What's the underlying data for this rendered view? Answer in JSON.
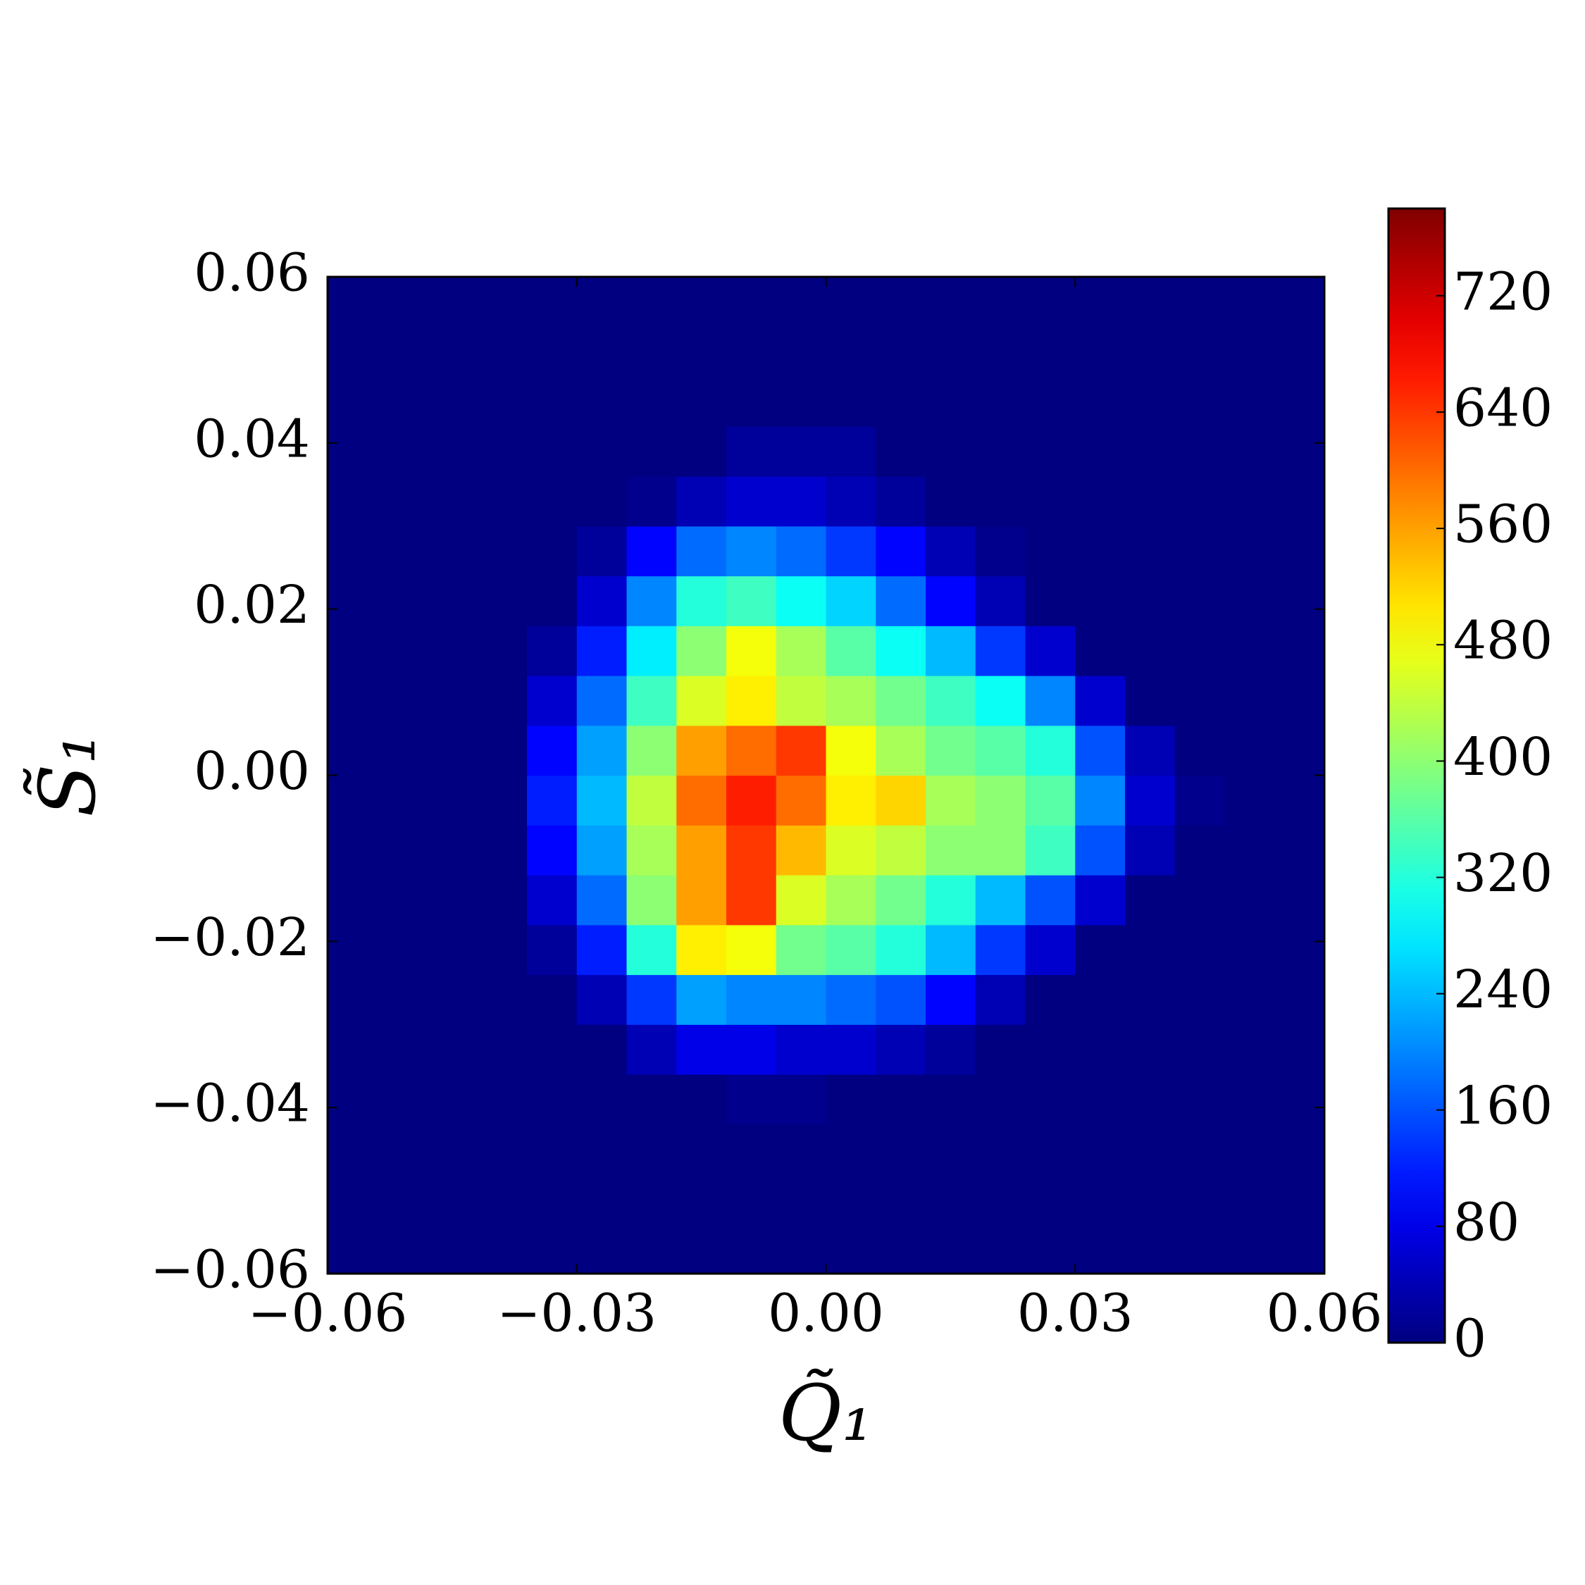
{
  "chart_data": {
    "type": "heatmap",
    "x_label": "Q̃₁",
    "y_label": "S̃₁",
    "colormap": "jet",
    "xbins": [
      -0.06,
      -0.054,
      -0.048,
      -0.042,
      -0.036,
      -0.03,
      -0.024,
      -0.018,
      -0.012,
      -0.006,
      0,
      0.006,
      0.012,
      0.018,
      0.024,
      0.03,
      0.036,
      0.042,
      0.048,
      0.054,
      0.06
    ],
    "ybins": [
      -0.06,
      -0.054,
      -0.048,
      -0.042,
      -0.036,
      -0.03,
      -0.024,
      -0.018,
      -0.012,
      -0.006,
      0,
      0.006,
      0.012,
      0.018,
      0.024,
      0.03,
      0.036,
      0.042,
      0.048,
      0.054,
      0.06
    ],
    "values": [
      [
        0,
        0,
        0,
        0,
        0,
        0,
        0,
        0,
        0,
        0,
        0,
        0,
        0,
        0,
        0,
        0,
        0,
        0,
        0,
        0
      ],
      [
        0,
        0,
        0,
        0,
        0,
        0,
        0,
        0,
        0,
        0,
        0,
        0,
        0,
        0,
        0,
        0,
        0,
        0,
        0,
        0
      ],
      [
        0,
        0,
        0,
        0,
        0,
        0,
        0,
        0,
        0,
        0,
        0,
        0,
        0,
        0,
        0,
        0,
        0,
        0,
        0,
        0
      ],
      [
        0,
        0,
        0,
        0,
        0,
        0,
        0,
        0,
        10,
        10,
        0,
        0,
        0,
        0,
        0,
        0,
        0,
        0,
        0,
        0
      ],
      [
        0,
        0,
        0,
        0,
        0,
        0,
        40,
        80,
        80,
        60,
        60,
        40,
        20,
        0,
        0,
        0,
        0,
        0,
        0,
        0
      ],
      [
        0,
        0,
        0,
        0,
        0,
        40,
        140,
        220,
        200,
        200,
        180,
        160,
        100,
        40,
        0,
        0,
        0,
        0,
        0,
        0
      ],
      [
        0,
        0,
        0,
        0,
        20,
        120,
        320,
        500,
        480,
        380,
        360,
        320,
        240,
        140,
        60,
        0,
        0,
        0,
        0,
        0
      ],
      [
        0,
        0,
        0,
        0,
        60,
        180,
        400,
        560,
        640,
        460,
        420,
        380,
        320,
        240,
        160,
        60,
        0,
        0,
        0,
        0
      ],
      [
        0,
        0,
        0,
        0,
        100,
        220,
        420,
        560,
        640,
        540,
        460,
        440,
        400,
        400,
        340,
        160,
        40,
        0,
        0,
        0
      ],
      [
        0,
        0,
        0,
        0,
        120,
        240,
        440,
        600,
        660,
        600,
        500,
        520,
        420,
        400,
        360,
        200,
        60,
        10,
        0,
        0
      ],
      [
        0,
        0,
        0,
        0,
        100,
        220,
        400,
        560,
        600,
        640,
        480,
        420,
        380,
        360,
        320,
        160,
        40,
        0,
        0,
        0
      ],
      [
        0,
        0,
        0,
        0,
        60,
        180,
        340,
        460,
        500,
        440,
        420,
        380,
        340,
        300,
        200,
        60,
        0,
        0,
        0,
        0
      ],
      [
        0,
        0,
        0,
        0,
        20,
        120,
        280,
        400,
        480,
        420,
        360,
        300,
        240,
        140,
        60,
        0,
        0,
        0,
        0,
        0
      ],
      [
        0,
        0,
        0,
        0,
        0,
        60,
        200,
        320,
        340,
        300,
        260,
        180,
        100,
        40,
        0,
        0,
        0,
        0,
        0,
        0
      ],
      [
        0,
        0,
        0,
        0,
        0,
        20,
        100,
        180,
        200,
        180,
        140,
        100,
        40,
        10,
        0,
        0,
        0,
        0,
        0,
        0
      ],
      [
        0,
        0,
        0,
        0,
        0,
        0,
        10,
        40,
        60,
        60,
        40,
        20,
        0,
        0,
        0,
        0,
        0,
        0,
        0,
        0
      ],
      [
        0,
        0,
        0,
        0,
        0,
        0,
        0,
        0,
        20,
        20,
        20,
        0,
        0,
        0,
        0,
        0,
        0,
        0,
        0,
        0
      ],
      [
        0,
        0,
        0,
        0,
        0,
        0,
        0,
        0,
        0,
        0,
        0,
        0,
        0,
        0,
        0,
        0,
        0,
        0,
        0,
        0
      ],
      [
        0,
        0,
        0,
        0,
        0,
        0,
        0,
        0,
        0,
        0,
        0,
        0,
        0,
        0,
        0,
        0,
        0,
        0,
        0,
        0
      ],
      [
        0,
        0,
        0,
        0,
        0,
        0,
        0,
        0,
        0,
        0,
        0,
        0,
        0,
        0,
        0,
        0,
        0,
        0,
        0,
        0
      ]
    ],
    "xlim": [
      -0.06,
      0.06
    ],
    "ylim": [
      -0.06,
      0.06
    ],
    "xticks": [
      {
        "value": -0.06,
        "label": "−0.06"
      },
      {
        "value": -0.03,
        "label": "−0.03"
      },
      {
        "value": 0,
        "label": "0.00"
      },
      {
        "value": 0.03,
        "label": "0.03"
      },
      {
        "value": 0.06,
        "label": "0.06"
      }
    ],
    "yticks": [
      {
        "value": -0.06,
        "label": "−0.06"
      },
      {
        "value": -0.04,
        "label": "−0.04"
      },
      {
        "value": -0.02,
        "label": "−0.02"
      },
      {
        "value": 0,
        "label": "0.00"
      },
      {
        "value": 0.02,
        "label": "0.02"
      },
      {
        "value": 0.04,
        "label": "0.04"
      },
      {
        "value": 0.06,
        "label": "0.06"
      }
    ],
    "colorbar": {
      "clim": [
        0,
        780
      ],
      "ticks": [
        0,
        80,
        160,
        240,
        320,
        400,
        480,
        560,
        640,
        720
      ]
    }
  }
}
